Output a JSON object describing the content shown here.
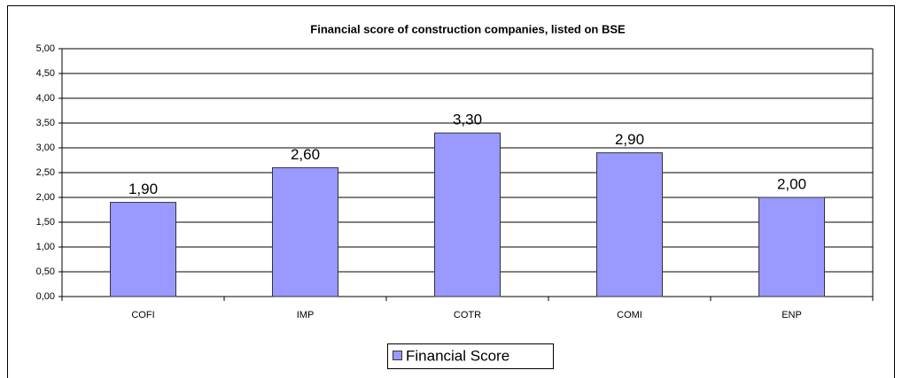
{
  "chart_data": {
    "type": "bar",
    "title": "Financial score of construction companies, listed on BSE",
    "categories": [
      "COFI",
      "IMP",
      "COTR",
      "COMI",
      "ENP"
    ],
    "series": [
      {
        "name": "Financial Score",
        "color": "#9999ff",
        "values": [
          1.9,
          2.6,
          3.3,
          2.9,
          2.0
        ],
        "value_labels": [
          "1,90",
          "2,60",
          "3,30",
          "2,90",
          "2,00"
        ]
      }
    ],
    "ylim": [
      0,
      5
    ],
    "yticks": [
      {
        "value": 0,
        "label": "0,00"
      },
      {
        "value": 0.5,
        "label": "0,50"
      },
      {
        "value": 1,
        "label": "1,00"
      },
      {
        "value": 1.5,
        "label": "1,50"
      },
      {
        "value": 2,
        "label": "2,00"
      },
      {
        "value": 2.5,
        "label": "2,50"
      },
      {
        "value": 3,
        "label": "3,00"
      },
      {
        "value": 3.5,
        "label": "3,50"
      },
      {
        "value": 4,
        "label": "4,00"
      },
      {
        "value": 4.5,
        "label": "4,50"
      },
      {
        "value": 5,
        "label": "5,00"
      }
    ],
    "grid": true,
    "legend": "bottom"
  }
}
